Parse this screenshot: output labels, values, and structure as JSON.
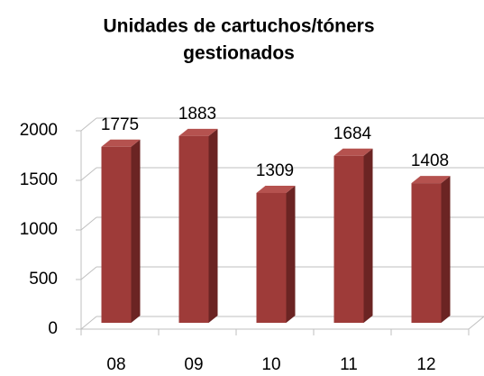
{
  "chart_data": {
    "type": "bar3d",
    "title": "Unidades de cartuchos/tóners",
    "subtitle": "gestionados",
    "categories": [
      "08",
      "09",
      "10",
      "11",
      "12"
    ],
    "values": [
      1775,
      1883,
      1309,
      1684,
      1408
    ],
    "color": "#9e3b39",
    "ylim": [
      0,
      2000
    ],
    "yticks": [
      0,
      500,
      1000,
      1500,
      2000
    ],
    "grid": true
  }
}
